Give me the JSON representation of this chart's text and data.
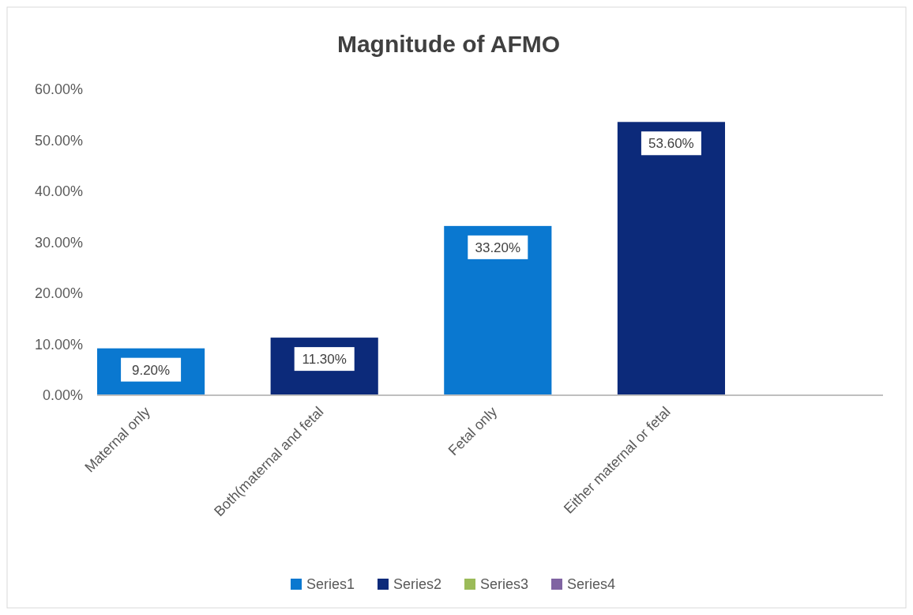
{
  "chart_data": {
    "type": "bar",
    "title": "Magnitude of AFMO",
    "categories": [
      "Maternal only",
      "Both(maternal and fetal",
      "Fetal only",
      "Either maternal or fetal"
    ],
    "series": [
      {
        "name": "Series1",
        "color": "#0a78d0",
        "values": [
          9.2,
          null,
          33.2,
          null
        ],
        "value_labels": [
          "9.20%",
          null,
          "33.20%",
          null
        ]
      },
      {
        "name": "Series2",
        "color": "#0c2a7a",
        "values": [
          null,
          11.3,
          null,
          53.6
        ],
        "value_labels": [
          null,
          "11.30%",
          null,
          "53.60%"
        ]
      },
      {
        "name": "Series3",
        "color": "#9bbb59",
        "values": [
          null,
          null,
          null,
          null
        ]
      },
      {
        "name": "Series4",
        "color": "#8064a2",
        "values": [
          null,
          null,
          null,
          null
        ]
      }
    ],
    "ylim": [
      0,
      60
    ],
    "yticks": [
      {
        "value": 0,
        "label": "0.00%"
      },
      {
        "value": 10,
        "label": "10.00%"
      },
      {
        "value": 20,
        "label": "20.00%"
      },
      {
        "value": 30,
        "label": "30.00%"
      },
      {
        "value": 40,
        "label": "40.00%"
      },
      {
        "value": 50,
        "label": "50.00%"
      },
      {
        "value": 60,
        "label": "60.00%"
      }
    ],
    "grid": false,
    "legend": "bottom"
  }
}
